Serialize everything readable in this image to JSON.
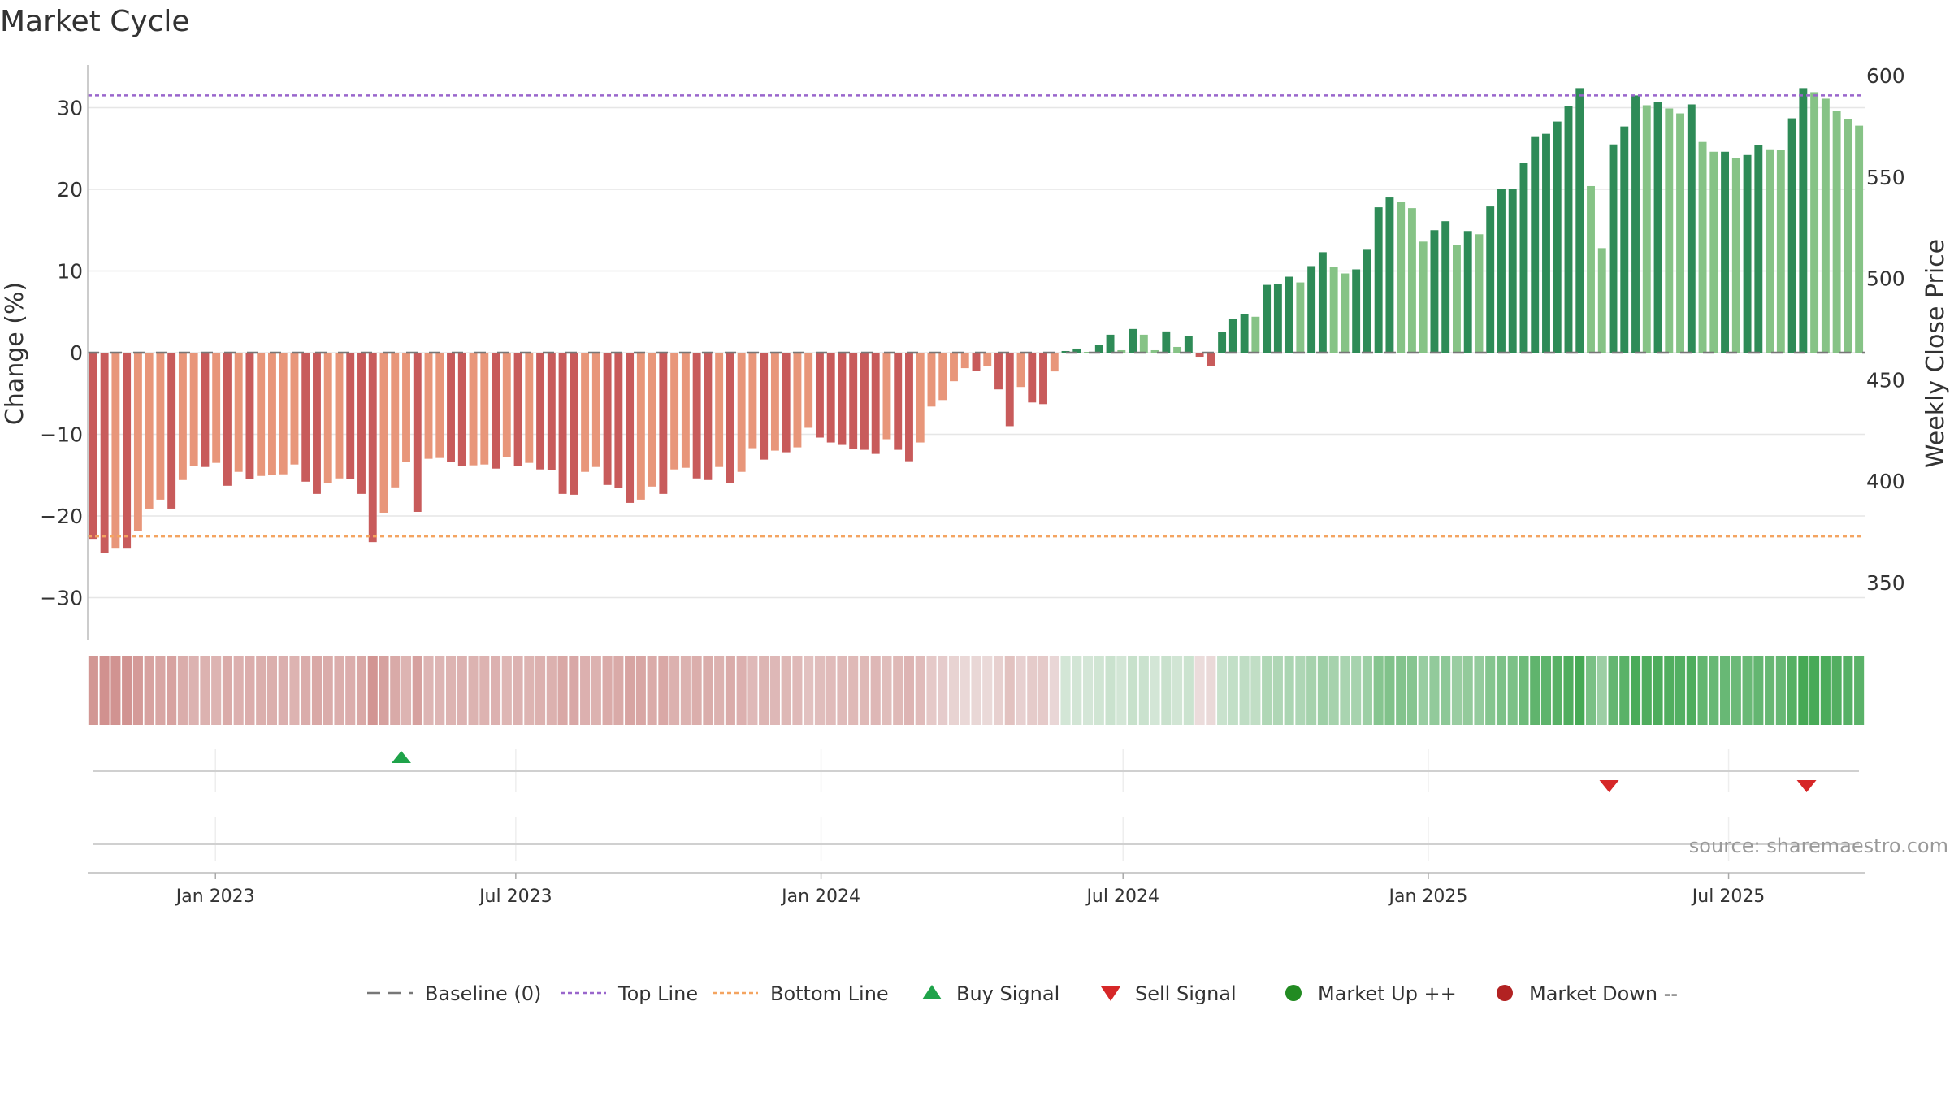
{
  "chart_data": {
    "type": "bar",
    "title": "Market Cycle",
    "ylabel_left": "Change (%)",
    "ylabel_right": "Weekly Close Price",
    "ylim_left": [
      -35,
      35
    ],
    "ylim_right": [
      320,
      600
    ],
    "yticks_left": [
      30,
      20,
      10,
      0,
      -10,
      -20,
      -30
    ],
    "yticks_left_labels": [
      "30",
      "20",
      "10",
      "0",
      "−10",
      "−20",
      "−30"
    ],
    "yticks_right": [
      600,
      550,
      500,
      450,
      400,
      350
    ],
    "top_line": 31.5,
    "bottom_line": -22.5,
    "baseline": 0,
    "x_start": "2022-10-16",
    "x_end": "2025-09-21",
    "x_ticks": [
      {
        "date": "2023-01-01",
        "label": "Jan 2023"
      },
      {
        "date": "2023-07-01",
        "label": "Jul 2023"
      },
      {
        "date": "2024-01-01",
        "label": "Jan 2024"
      },
      {
        "date": "2024-07-01",
        "label": "Jul 2024"
      },
      {
        "date": "2025-01-01",
        "label": "Jan 2025"
      },
      {
        "date": "2025-07-01",
        "label": "Jul 2025"
      }
    ],
    "first_week": "2022-10-16",
    "values": [
      -22.8,
      -24.5,
      -24.0,
      -24.0,
      -21.8,
      -19.1,
      -18.0,
      -19.1,
      -15.6,
      -13.9,
      -14.0,
      -13.5,
      -16.3,
      -14.6,
      -15.5,
      -15.1,
      -15.0,
      -14.9,
      -13.7,
      -15.8,
      -17.3,
      -16.0,
      -15.4,
      -15.5,
      -17.3,
      -23.2,
      -19.6,
      -16.5,
      -13.4,
      -19.5,
      -13.0,
      -12.9,
      -13.4,
      -13.9,
      -13.8,
      -13.7,
      -14.2,
      -12.8,
      -13.9,
      -13.5,
      -14.3,
      -14.4,
      -17.3,
      -17.4,
      -14.6,
      -14.0,
      -16.2,
      -16.6,
      -18.4,
      -18.0,
      -16.4,
      -17.3,
      -14.3,
      -14.1,
      -15.4,
      -15.6,
      -14.0,
      -16.0,
      -14.6,
      -11.7,
      -13.1,
      -12.0,
      -12.2,
      -11.6,
      -9.2,
      -10.4,
      -11.0,
      -11.3,
      -11.8,
      -11.9,
      -12.4,
      -10.6,
      -11.9,
      -13.3,
      -11.0,
      -6.6,
      -5.8,
      -3.5,
      -1.9,
      -2.2,
      -1.6,
      -4.5,
      -9.0,
      -4.2,
      -6.1,
      -6.3,
      -2.3,
      0.2,
      0.5,
      0.1,
      0.9,
      2.2,
      0.3,
      2.9,
      2.2,
      0.3,
      2.6,
      0.7,
      2.0,
      -0.5,
      -1.6,
      2.5,
      4.1,
      4.7,
      4.4,
      8.3,
      8.4,
      9.3,
      8.6,
      10.6,
      12.3,
      10.5,
      9.7,
      10.2,
      12.6,
      17.8,
      19.0,
      18.5,
      17.7,
      13.6,
      15.0,
      16.1,
      13.2,
      14.9,
      14.5,
      17.9,
      20.0,
      20.0,
      23.2,
      26.5,
      26.8,
      28.3,
      30.2,
      32.4,
      20.4,
      12.8,
      25.5,
      27.7,
      31.5,
      30.3,
      30.7,
      29.9,
      29.3,
      30.4,
      25.8,
      24.6,
      24.6,
      23.8,
      24.2,
      25.4,
      24.9,
      24.8,
      28.7,
      32.4,
      31.9,
      31.1,
      29.6,
      28.6,
      27.8
    ],
    "momentum_strip_colors": [
      "#c98a86",
      "#f7f7f7",
      "#2e7d32"
    ],
    "buy_signals": [
      {
        "date": "2023-04-23"
      }
    ],
    "sell_signals": [
      {
        "date": "2025-04-20"
      },
      {
        "date": "2025-08-17"
      }
    ],
    "market_up_markers": [],
    "market_down_markers": [],
    "colors": {
      "negative_dark": "#c85b5b",
      "negative_light": "#e8967a",
      "positive_dark": "#2e8b57",
      "positive_light": "#86c386",
      "top_line": "#9966cc",
      "bottom_line": "#f4a460",
      "baseline": "#777777",
      "buy": "#1fa34a",
      "sell": "#d62728",
      "market_up": "#228b22",
      "market_down": "#b22222"
    },
    "legend": [
      {
        "label": "Baseline (0)",
        "type": "dashed-line",
        "color": "#777777"
      },
      {
        "label": "Top Line",
        "type": "dotted-line",
        "color": "#9966cc"
      },
      {
        "label": "Bottom Line",
        "type": "dotted-line",
        "color": "#f4a460"
      },
      {
        "label": "Buy Signal",
        "type": "triangle-up",
        "color": "#1fa34a"
      },
      {
        "label": "Sell Signal",
        "type": "triangle-down",
        "color": "#d62728"
      },
      {
        "label": "Market Up ++",
        "type": "dot",
        "color": "#228b22"
      },
      {
        "label": "Market Down --",
        "type": "dot",
        "color": "#b22222"
      }
    ],
    "source": "source: sharemaestro.com"
  }
}
